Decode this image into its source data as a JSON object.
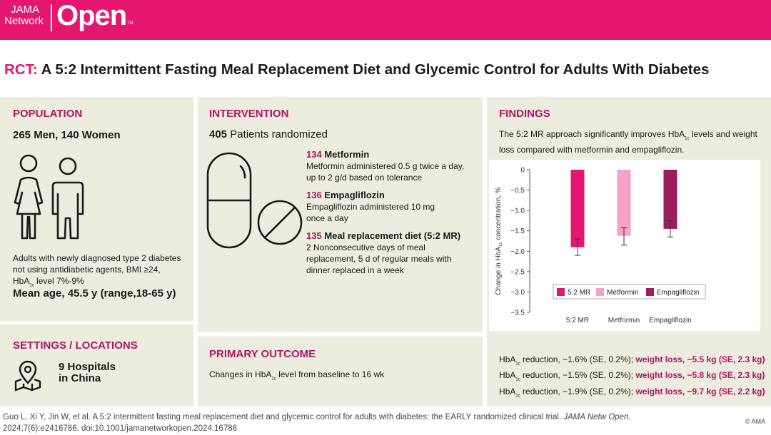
{
  "header": {
    "logo_line1": "JAMA",
    "logo_line2": "Network",
    "logo_big": "Open",
    "logo_tm": "TM"
  },
  "title": {
    "prefix": "RCT:",
    "text": " A 5:2 Intermittent Fasting Meal Replacement Diet and Glycemic Control for Adults With Diabetes"
  },
  "population": {
    "heading": "POPULATION",
    "counts": "265 Men, 140 Women",
    "desc_line1": "Adults with newly diagnosed type 2 diabetes",
    "desc_line2": "not using antidiabetic agents, BMI ≥24,",
    "desc_line3_pre": "HbA",
    "desc_line3_sub": "1c",
    "desc_line3_post": " level 7%-9%",
    "mean_age": "Mean age, 45.5 y (range,18-65 y)"
  },
  "settings": {
    "heading": "SETTINGS / LOCATIONS",
    "line1": "9 Hospitals",
    "line2": "in China"
  },
  "intervention": {
    "heading": "INTERVENTION",
    "randomized_n": "405",
    "randomized_text": " Patients randomized",
    "arms": [
      {
        "n": "134",
        "name": " Metformin",
        "line1": "Metformin administered 0.5 g twice a day,",
        "line2": "up to 2 g/d based on tolerance",
        "line3": ""
      },
      {
        "n": "136",
        "name": " Empagliflozin",
        "line1": "Empagliflozin administered 10 mg",
        "line2": "once a day",
        "line3": ""
      },
      {
        "n": "135",
        "name": " Meal replacement diet (5:2 MR)",
        "line1": "2 Nonconsecutive days of meal",
        "line2": "replacement, 5 d of regular meals with",
        "line3": "dinner replaced in a week"
      }
    ]
  },
  "primary_outcome": {
    "heading": "PRIMARY OUTCOME",
    "pre": "Changes in HbA",
    "sub": "1c",
    "post": " level from baseline to 16 wk"
  },
  "findings": {
    "heading": "FINDINGS",
    "line1_pre": "The 5:2 MR approach significantly improves HbA",
    "line1_sub": "1c",
    "line1_post": " levels and weight",
    "line2": "loss compared with metformin and empagliflozin.",
    "results": [
      {
        "pre": "HbA",
        "sub": "1c",
        "mid": " reduction, −1.6% (SE, 0.2%);",
        "weight": " weight loss, −5.5 kg (SE, 2.3 kg)"
      },
      {
        "pre": "HbA",
        "sub": "1c",
        "mid": " reduction, −1.5% (SE, 0.2%);",
        "weight": " weight loss, −5.8 kg (SE, 2.3 kg)"
      },
      {
        "pre": "HbA",
        "sub": "1c",
        "mid": " reduction, −1.9% (SE, 0.2%);",
        "weight": " weight loss, −9.7 kg (SE, 2.2 kg)"
      }
    ]
  },
  "chart_data": {
    "type": "bar",
    "categories": [
      "5:2 MR",
      "Metformin",
      "Empagliflozin"
    ],
    "values": [
      -1.9,
      -1.62,
      -1.45
    ],
    "error_low": [
      -2.1,
      -1.85,
      -1.65
    ],
    "error_high": [
      -1.7,
      -1.42,
      -1.25
    ],
    "colors": [
      "#e4166f",
      "#f4a2c8",
      "#9c1e5c"
    ],
    "ylabel_pre": "Change in HbA",
    "ylabel_sub": "1c",
    "ylabel_post": " concentration, %",
    "ylim": [
      -3.5,
      0
    ],
    "yticks": [
      0,
      -0.5,
      -1.0,
      -1.5,
      -2.0,
      -2.5,
      -3.0,
      -3.5
    ],
    "ytick_labels": [
      "0",
      "−0.5",
      "−1.0",
      "−1.5",
      "−2.0",
      "−2.5",
      "−3.0",
      "−3.5"
    ],
    "legend": [
      "5:2 MR",
      "Metformin",
      "Empagliflozin"
    ],
    "legend_position": "bottom-inside",
    "grid": false
  },
  "citation": {
    "line1_pre": "Guo L, Xi Y, Jin W, et al. A 5:2 intermittent fasting meal replacement diet and glycemic control for adults with diabetes: the EARLY randomized clinical trial. ",
    "journal": "JAMA Netw Open",
    "line1_post": ".",
    "line2": "2024;7(6):e2416786. doi:10.1001/jamanetworkopen.2024.16786"
  },
  "copyright": "© AMA"
}
